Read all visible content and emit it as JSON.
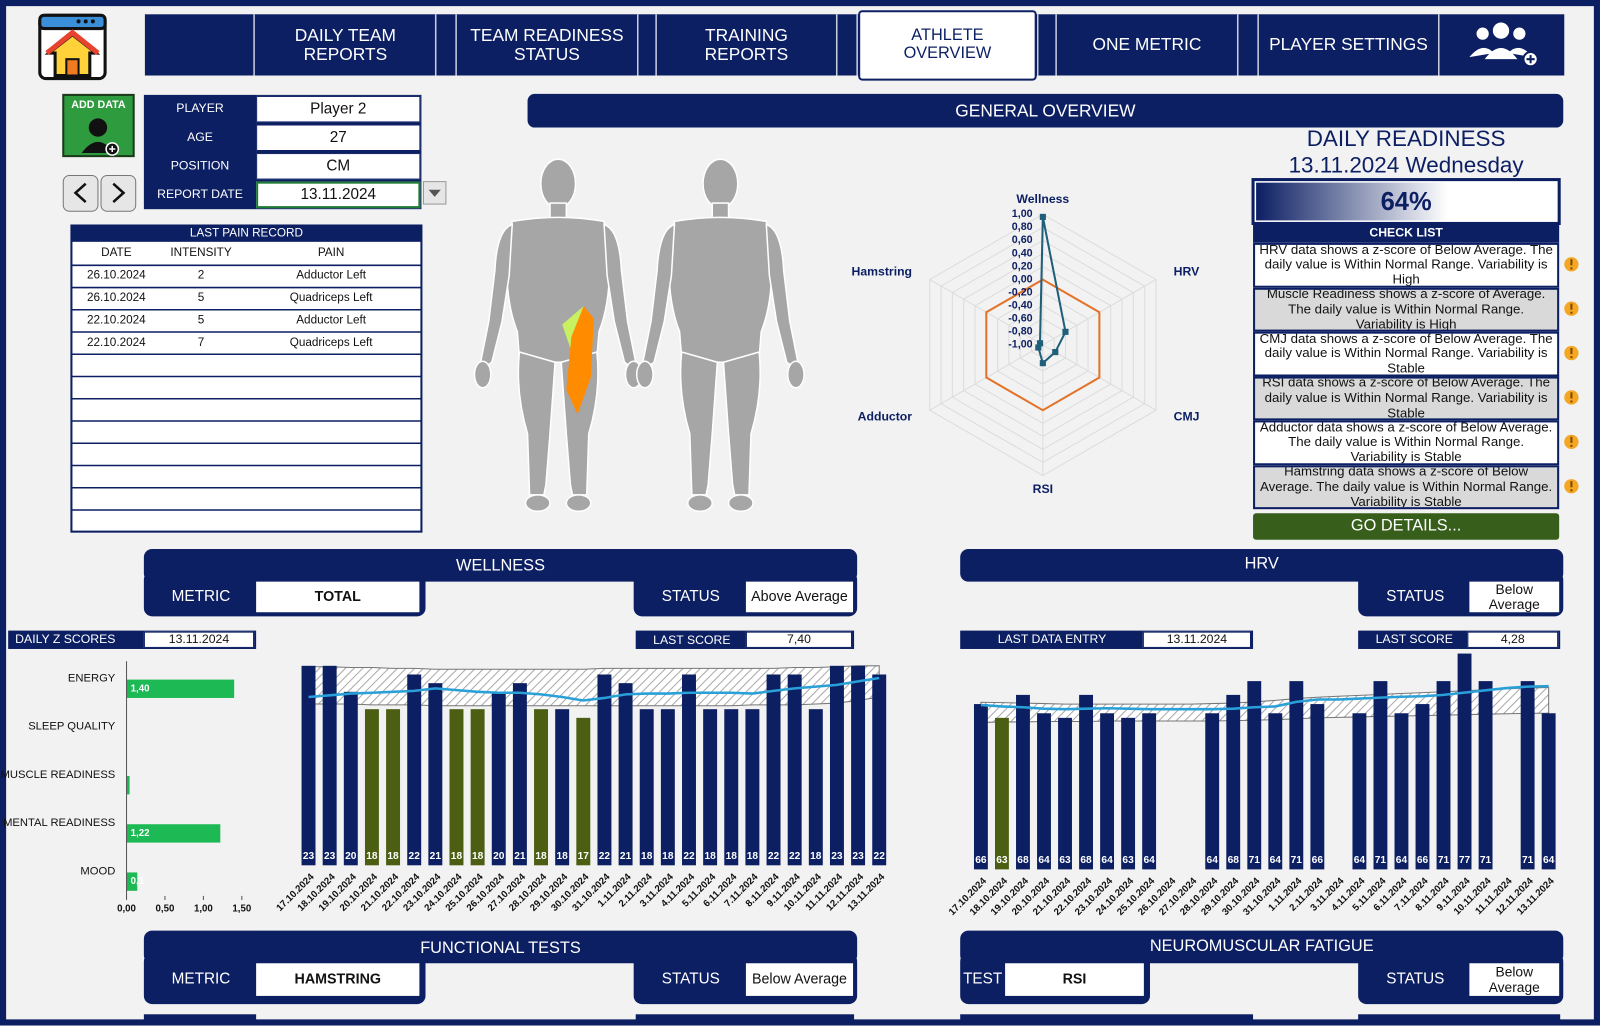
{
  "nav": {
    "items": [
      "DAILY TEAM REPORTS",
      "TEAM READINESS STATUS",
      "TRAINING REPORTS",
      "ATHLETE OVERVIEW",
      "ONE METRIC",
      "PLAYER SETTINGS"
    ],
    "active": 3
  },
  "add_data": "ADD DATA",
  "player": {
    "rows": [
      [
        "PLAYER",
        "Player 2"
      ],
      [
        "AGE",
        27
      ],
      [
        "POSITION",
        "CM"
      ],
      [
        "REPORT DATE",
        "13.11.2024"
      ]
    ]
  },
  "pain": {
    "title": "LAST PAIN RECORD",
    "columns": [
      "DATE",
      "INTENSITY",
      "PAIN"
    ],
    "rows": [
      [
        "26.10.2024",
        2,
        "Adductor Left"
      ],
      [
        "26.10.2024",
        5,
        "Quadriceps Left"
      ],
      [
        "22.10.2024",
        5,
        "Adductor Left"
      ],
      [
        "22.10.2024",
        7,
        "Quadriceps Left"
      ]
    ]
  },
  "overview": {
    "title": "GENERAL OVERVIEW"
  },
  "radar": {
    "type": "radar",
    "axes": [
      "Wellness",
      "HRV",
      "CMJ",
      "RSI",
      "Adductor",
      "Hamstring"
    ],
    "values": [
      0.96,
      -0.6,
      -0.78,
      -0.72,
      -0.92,
      -0.95
    ],
    "reference": [
      0,
      0,
      0,
      0,
      0,
      0
    ],
    "color": "#1f5f7a",
    "reference_color": "#e3732a",
    "rlim": [
      -1,
      1
    ],
    "rticks": [
      {
        "value": 1,
        "label": "1,00"
      },
      {
        "value": 0.8,
        "label": "0,80"
      },
      {
        "value": 0.6,
        "label": "0,60"
      },
      {
        "value": 0.4,
        "label": "0,40"
      },
      {
        "value": 0.2,
        "label": "0,20"
      },
      {
        "value": 0,
        "label": "0,00"
      },
      {
        "value": -0.2,
        "label": "-0,20"
      },
      {
        "value": -0.4,
        "label": "-0,40"
      },
      {
        "value": -0.6,
        "label": "-0,60"
      },
      {
        "value": -0.8,
        "label": "-0,80"
      },
      {
        "value": -1,
        "label": "-1,00"
      }
    ]
  },
  "readiness": {
    "title": "DAILY READINESS",
    "date": "13.11.2024 Wednesday",
    "value": 64,
    "value_label": "64%",
    "lim": [
      0,
      100
    ],
    "checklist_title": "CHECK LIST",
    "items": [
      "HRV data shows a z-score of Below Average. The daily value is Within Normal Range. Variability is High",
      "Muscle Readiness shows a z-score of Average. The daily value is Within Normal Range. Variability is High",
      "CMJ data shows a z-score of Below Average. The daily value is Within Normal Range. Variability is Stable",
      "RSI data shows a z-score of Below Average. The daily value is Within Normal Range. Variability is Stable",
      "Adductor data shows a z-score of Below Average. The daily value is Within Normal Range. Variability is Stable",
      "Hamstring data shows a z-score of Below Average. The daily value is Within Normal Range. Variability is Stable"
    ],
    "button": "GO DETAILS..."
  },
  "wellness": {
    "title": "WELLNESS",
    "metric_label": "METRIC",
    "metric": "TOTAL",
    "status_label": "STATUS",
    "status": "Above Average",
    "z_label": "DAILY Z SCORES",
    "z_date": "13.11.2024",
    "last_label": "LAST SCORE",
    "last": "7,40"
  },
  "z_chart": {
    "type": "hbar",
    "categories": [
      "ENERGY",
      "SLEEP QUALITY",
      "MUSCLE READINESS",
      "MENTAL READINESS",
      "MOOD"
    ],
    "values": [
      1.4,
      0,
      0.04,
      1.22,
      0.14
    ],
    "value_labels": [
      "1,40",
      null,
      null,
      "1,22",
      "0,1"
    ],
    "color": "#1db954",
    "xlim": [
      0,
      1.5
    ],
    "xticks": [
      {
        "value": 0,
        "label": "0,00"
      },
      {
        "value": 0.5,
        "label": "0,50"
      },
      {
        "value": 1,
        "label": "1,00"
      },
      {
        "value": 1.5,
        "label": "1,50"
      }
    ]
  },
  "wellness_chart": {
    "type": "bar",
    "categories": [
      "17.10.2024",
      "18.10.2024",
      "19.10.2024",
      "20.10.2024",
      "21.10.2024",
      "22.10.2024",
      "23.10.2024",
      "24.10.2024",
      "25.10.2024",
      "26.10.2024",
      "27.10.2024",
      "28.10.2024",
      "29.10.2024",
      "30.10.2024",
      "31.10.2024",
      "1.11.2024",
      "2.11.2024",
      "3.11.2024",
      "4.11.2024",
      "5.11.2024",
      "6.11.2024",
      "7.11.2024",
      "8.11.2024",
      "9.11.2024",
      "10.11.2024",
      "11.11.2024",
      "12.11.2024",
      "13.11.2024"
    ],
    "values": [
      23,
      23,
      20,
      18,
      18,
      22,
      21,
      18,
      18,
      20,
      21,
      18,
      18,
      17,
      22,
      21,
      18,
      18,
      22,
      18,
      18,
      18,
      22,
      22,
      18,
      23,
      23,
      22
    ],
    "colors": [
      "#0c1f63",
      "#0c1f63",
      "#0c1f63",
      "#4b5e12",
      "#4b5e12",
      "#0c1f63",
      "#0c1f63",
      "#4b5e12",
      "#4b5e12",
      "#0c1f63",
      "#0c1f63",
      "#4b5e12",
      "#0c1f63",
      "#4b5e12",
      "#0c1f63",
      "#0c1f63",
      "#0c1f63",
      "#0c1f63",
      "#0c1f63",
      "#0c1f63",
      "#0c1f63",
      "#0c1f63",
      "#0c1f63",
      "#0c1f63",
      "#0c1f63",
      "#0c1f63",
      "#0c1f63",
      "#0c1f63"
    ],
    "trend": [
      19.4,
      19.6,
      19.8,
      19.9,
      20.0,
      20.1,
      20.4,
      20.2,
      20.0,
      19.9,
      19.9,
      19.7,
      19.4,
      19.0,
      19.3,
      19.7,
      19.8,
      19.8,
      19.9,
      19.9,
      19.9,
      19.8,
      20.1,
      20.4,
      20.6,
      20.8,
      21.2,
      21.6
    ],
    "range_high": [
      22.9,
      22.9,
      22.8,
      22.8,
      22.7,
      22.7,
      22.6,
      22.6,
      22.6,
      22.6,
      22.6,
      22.6,
      22.6,
      22.6,
      22.7,
      22.7,
      22.7,
      22.7,
      22.7,
      22.7,
      22.7,
      22.7,
      22.7,
      22.8,
      22.8,
      22.9,
      23.0,
      23.0
    ],
    "range_low": [
      18.6,
      18.6,
      18.6,
      18.5,
      18.5,
      18.5,
      18.4,
      18.4,
      18.4,
      18.4,
      18.4,
      18.4,
      18.4,
      18.4,
      18.4,
      18.4,
      18.4,
      18.4,
      18.4,
      18.4,
      18.4,
      18.5,
      18.5,
      18.5,
      18.6,
      18.7,
      19.0,
      19.4
    ],
    "trend_color": "#2aa0d8",
    "ylim": [
      0,
      24
    ]
  },
  "hrv": {
    "title": "HRV",
    "status_label": "STATUS",
    "status": "Below Average",
    "entry_label": "LAST DATA ENTRY",
    "entry": "13.11.2024",
    "last_label": "LAST SCORE",
    "last": "4,28"
  },
  "hrv_chart": {
    "type": "bar",
    "categories": [
      "17.10.2024",
      "18.10.2024",
      "19.10.2024",
      "20.10.2024",
      "21.10.2024",
      "22.10.2024",
      "23.10.2024",
      "24.10.2024",
      "25.10.2024",
      "26.10.2024",
      "27.10.2024",
      "28.10.2024",
      "29.10.2024",
      "30.10.2024",
      "31.10.2024",
      "1.11.2024",
      "2.11.2024",
      "3.11.2024",
      "4.11.2024",
      "5.11.2024",
      "6.11.2024",
      "7.11.2024",
      "8.11.2024",
      "9.11.2024",
      "10.11.2024",
      "11.11.2024",
      "12.11.2024",
      "13.11.2024"
    ],
    "values": [
      66,
      63,
      68,
      64,
      63,
      68,
      64,
      63,
      64,
      null,
      null,
      64,
      68,
      71,
      64,
      71,
      66,
      null,
      64,
      71,
      64,
      66,
      71,
      77,
      71,
      null,
      71,
      64
    ],
    "colors": [
      "#0c1f63",
      "#4b5e12",
      "#0c1f63",
      "#0c1f63",
      "#0c1f63",
      "#0c1f63",
      "#0c1f63",
      "#0c1f63",
      "#0c1f63",
      "#0c1f63",
      "#0c1f63",
      "#0c1f63",
      "#0c1f63",
      "#0c1f63",
      "#0c1f63",
      "#0c1f63",
      "#0c1f63",
      "#0c1f63",
      "#0c1f63",
      "#0c1f63",
      "#0c1f63",
      "#0c1f63",
      "#0c1f63",
      "#0c1f63",
      "#0c1f63",
      "#0c1f63",
      "#0c1f63",
      "#0c1f63"
    ],
    "trend": [
      65.8,
      65.5,
      65.3,
      65.0,
      64.9,
      65.0,
      65.1,
      65.0,
      64.9,
      64.9,
      64.9,
      64.9,
      65.0,
      65.3,
      65.5,
      66.5,
      67.0,
      67.0,
      67.2,
      67.4,
      67.6,
      67.7,
      68.0,
      68.5,
      69.0,
      69.5,
      69.8,
      69.9
    ],
    "range_high": [
      66.4,
      66.3,
      66.2,
      66.1,
      66.0,
      66.0,
      66.0,
      66.0,
      66.0,
      66.0,
      66.0,
      66.1,
      66.2,
      66.5,
      66.8,
      67.2,
      67.5,
      67.7,
      67.9,
      68.1,
      68.3,
      68.5,
      68.7,
      68.9,
      69.1,
      69.3,
      69.5,
      69.6
    ],
    "range_low": [
      62.0,
      62.1,
      62.1,
      62.2,
      62.2,
      62.2,
      62.3,
      62.3,
      62.3,
      62.3,
      62.3,
      62.3,
      62.4,
      62.5,
      62.6,
      62.8,
      63.0,
      63.1,
      63.2,
      63.3,
      63.4,
      63.5,
      63.6,
      63.7,
      63.8,
      63.9,
      64.0,
      64.0
    ],
    "trend_color": "#2aa0d8",
    "ylim": [
      30,
      78
    ]
  },
  "functional": {
    "title": "FUNCTIONAL TESTS",
    "metric_label": "METRIC",
    "metric": "HAMSTRING",
    "status_label": "STATUS",
    "status": "Below Average"
  },
  "neuromuscular": {
    "title": "NEUROMUSCULAR FATIGUE",
    "test_label": "TEST",
    "test": "RSI",
    "status_label": "STATUS",
    "status": "Below Average"
  }
}
